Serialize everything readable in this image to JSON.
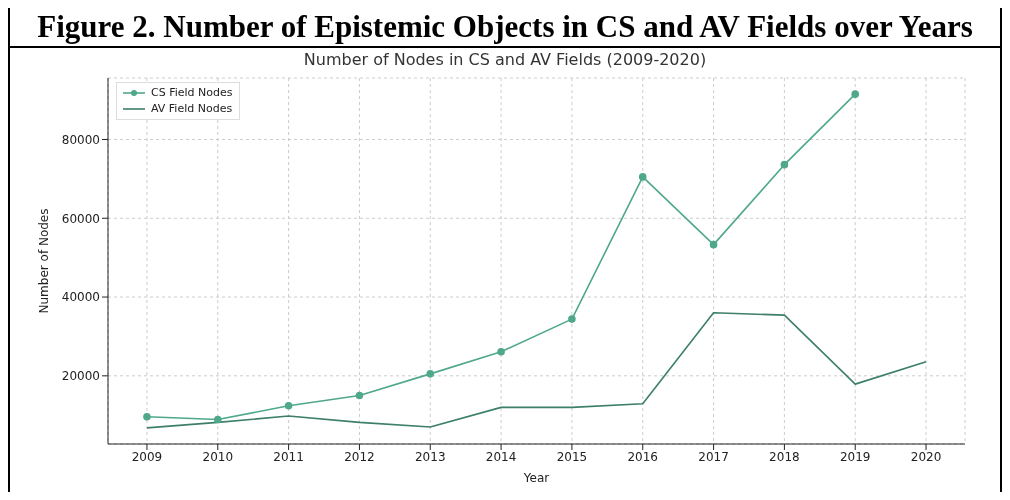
{
  "chart_data": {
    "type": "line",
    "title": "Figure 2.  Number of Epistemic Objects in CS and AV Fields over Years",
    "subtitle": "Number of Nodes in CS and AV Fields (2009-2020)",
    "xlabel": "Year",
    "ylabel": "Number of Nodes",
    "categories": [
      "2009",
      "2010",
      "2011",
      "2012",
      "2013",
      "2014",
      "2015",
      "2016",
      "2017",
      "2018",
      "2019",
      "2020"
    ],
    "series": [
      {
        "name": "CS Field Nodes",
        "color": "#4fa88a",
        "marker": "circle",
        "values": [
          9600,
          8900,
          12400,
          15000,
          20500,
          26100,
          34400,
          70500,
          53300,
          73600,
          91500,
          null
        ]
      },
      {
        "name": "AV Field Nodes",
        "color": "#3d7f68",
        "marker": "none",
        "values": [
          6800,
          8200,
          9800,
          8200,
          7000,
          12000,
          12000,
          12900,
          36000,
          35400,
          17900,
          23600
        ]
      }
    ],
    "ylim": [
      2700,
      95600
    ],
    "yticks": [
      20000,
      40000,
      60000,
      80000
    ],
    "grid": true,
    "legend": "top left",
    "line_style": "solid"
  }
}
